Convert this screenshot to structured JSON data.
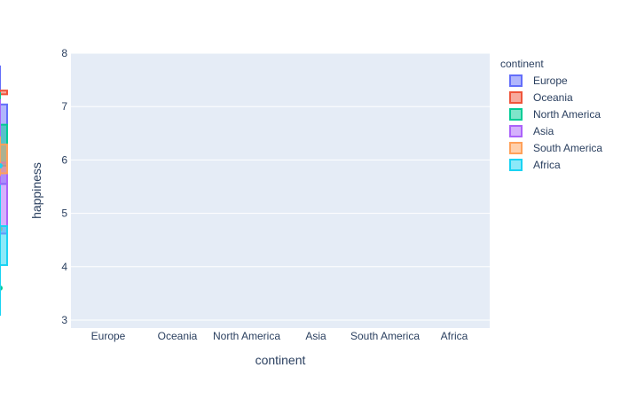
{
  "chart_data": {
    "type": "box",
    "xlabel": "continent",
    "ylabel": "happiness",
    "ylim": [
      2.85,
      8.0
    ],
    "yticks": [
      3,
      4,
      5,
      6,
      7,
      8
    ],
    "categories": [
      "Europe",
      "Oceania",
      "North America",
      "Asia",
      "South America",
      "Africa"
    ],
    "legend": {
      "title": "continent",
      "position": "right"
    },
    "grid": true,
    "series": [
      {
        "name": "Europe",
        "color": "#636efa",
        "min": 4.33,
        "q1": 5.55,
        "median": 6.18,
        "q3": 7.04,
        "max": 7.77,
        "outliers": []
      },
      {
        "name": "Oceania",
        "color": "#ef553b",
        "min": 7.23,
        "q1": 7.23,
        "median": 7.26,
        "q3": 7.3,
        "max": 7.31,
        "outliers": []
      },
      {
        "name": "North America",
        "color": "#00cc96",
        "min": 5.43,
        "q1": 5.89,
        "median": 6.26,
        "q3": 6.66,
        "max": 7.27,
        "outliers": [
          3.6
        ]
      },
      {
        "name": "Asia",
        "color": "#ab63fa",
        "min": 3.21,
        "q1": 4.62,
        "median": 5.25,
        "q3": 5.95,
        "max": 7.14,
        "outliers": []
      },
      {
        "name": "South America",
        "color": "#ffa15a",
        "min": 5.7,
        "q1": 5.75,
        "median": 6.02,
        "q3": 6.29,
        "max": 6.44,
        "outliers": [
          4.71
        ]
      },
      {
        "name": "Africa",
        "color": "#19d3f3",
        "min": 3.08,
        "q1": 4.03,
        "median": 4.47,
        "q3": 4.76,
        "max": 5.53,
        "outliers": [
          5.89
        ]
      }
    ]
  }
}
